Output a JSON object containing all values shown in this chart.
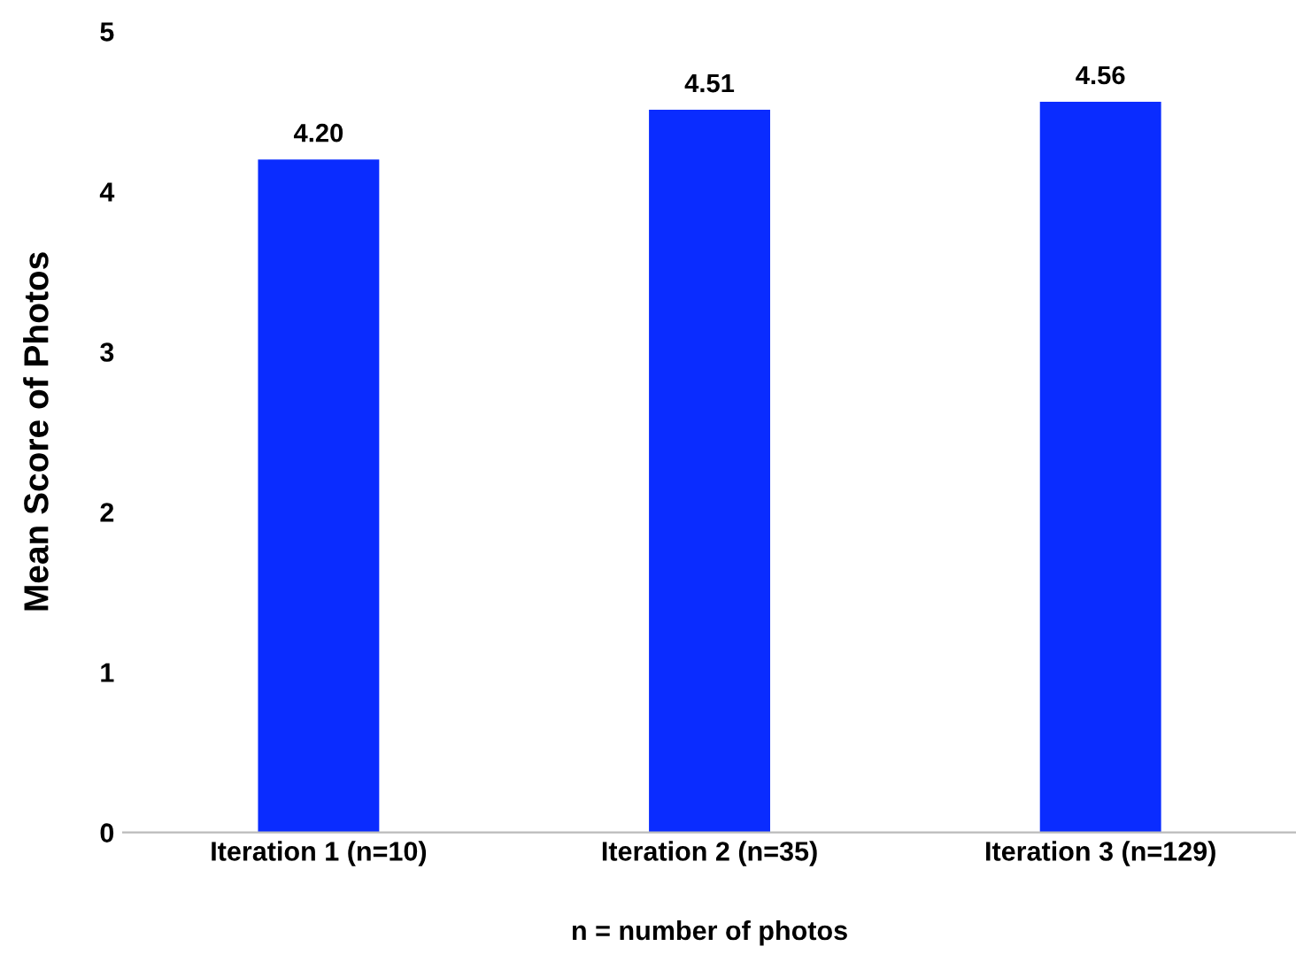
{
  "chart_data": {
    "type": "bar",
    "categories": [
      "Iteration 1 (n=10)",
      "Iteration 2 (n=35)",
      "Iteration 3 (n=129)"
    ],
    "values": [
      4.2,
      4.51,
      4.56
    ],
    "value_labels": [
      "4.20",
      "4.51",
      "4.56"
    ],
    "color": "#0a2cff",
    "xlabel": "n = number of photos",
    "ylabel": "Mean Score of Photos",
    "ylim": [
      0,
      5
    ],
    "yticks": [
      0,
      1,
      2,
      3,
      4,
      5
    ],
    "grid": false,
    "legend": false
  }
}
